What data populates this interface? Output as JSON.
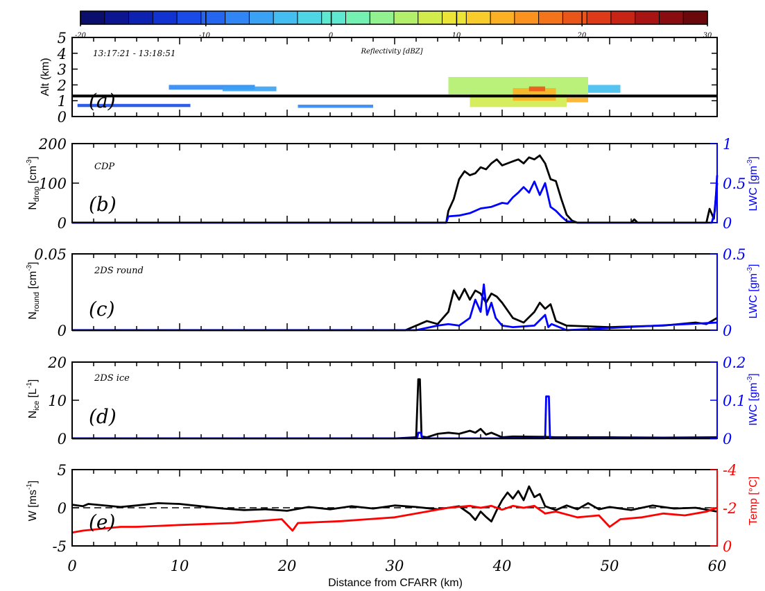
{
  "colorbar": {
    "ticks": [
      "-20",
      "-10",
      "0",
      "10",
      "20",
      "30"
    ],
    "colors": [
      "#0a0f6e",
      "#0c1690",
      "#0e22b2",
      "#1033d2",
      "#1a4ae8",
      "#2466f0",
      "#2f86f4",
      "#3aa2f4",
      "#44bef0",
      "#4fd6e6",
      "#5ee8d2",
      "#74f0b2",
      "#92f290",
      "#b2f06c",
      "#d2ec4c",
      "#ece436",
      "#f8cc2a",
      "#fcb024",
      "#fa9220",
      "#f4741c",
      "#ea561a",
      "#de3a18",
      "#c82416",
      "#a81414",
      "#880c10",
      "#6a080c"
    ]
  },
  "chart_data": [
    {
      "panel": "a",
      "type": "heatmap",
      "label": "(a)",
      "annotation": "13:17:21 - 13:18:51",
      "colorbar_title": "Reflectivity [dBZ]",
      "ylabel": "Alt (km)",
      "yticks": [
        "0",
        "1",
        "2",
        "3",
        "4",
        "5"
      ],
      "ylim": [
        0,
        5
      ],
      "xlim": [
        0,
        60
      ],
      "reference_altitude_km": 1.3,
      "cells": [
        {
          "x0": 0.5,
          "x1": 11,
          "y0": 0.6,
          "y1": 0.8,
          "dbz": -12
        },
        {
          "x0": 9,
          "x1": 17,
          "y0": 1.7,
          "y1": 2.0,
          "dbz": -8
        },
        {
          "x0": 14,
          "x1": 19,
          "y0": 1.6,
          "y1": 1.9,
          "dbz": -5
        },
        {
          "x0": 21,
          "x1": 28,
          "y0": 0.55,
          "y1": 0.75,
          "dbz": -8
        },
        {
          "x0": 35,
          "x1": 48,
          "y0": 1.4,
          "y1": 2.5,
          "dbz": 5
        },
        {
          "x0": 37,
          "x1": 46,
          "y0": 0.6,
          "y1": 1.4,
          "dbz": 8
        },
        {
          "x0": 41,
          "x1": 45,
          "y0": 1.0,
          "y1": 1.8,
          "dbz": 14
        },
        {
          "x0": 42.5,
          "x1": 44,
          "y0": 1.6,
          "y1": 1.9,
          "dbz": 20
        },
        {
          "x0": 46,
          "x1": 48,
          "y0": 0.9,
          "y1": 1.2,
          "dbz": 14
        },
        {
          "x0": 48,
          "x1": 51,
          "y0": 1.5,
          "y1": 2.0,
          "dbz": -3
        }
      ]
    },
    {
      "panel": "b",
      "type": "line",
      "label": "(b)",
      "instrument": "CDP",
      "ylabel_left": "N",
      "ylabel_left_sub": "drop",
      "ylabel_left_unit": " [cm",
      "ylabel_left_exp": "-3",
      "ylabel_left_tail": "]",
      "ylabel_right": "LWC [gm",
      "ylabel_right_exp": "-3",
      "ylabel_right_tail": "]",
      "ylim": [
        0,
        200
      ],
      "yticks": [
        "0",
        "100",
        "200"
      ],
      "y2lim": [
        0,
        1
      ],
      "y2ticks": [
        "0",
        "0.5",
        "1"
      ],
      "series": [
        {
          "axis": "left",
          "color": "#000000",
          "x": [
            0,
            34.8,
            35,
            35.5,
            36,
            36.5,
            37,
            37.5,
            38,
            38.5,
            39,
            39.5,
            40,
            40.5,
            41,
            41.5,
            42,
            42.5,
            43,
            43.5,
            44,
            44.5,
            45,
            45.5,
            46,
            46.5,
            47,
            50,
            52,
            52.3,
            52.6,
            55,
            59,
            59.3,
            59.7,
            60
          ],
          "y": [
            0,
            0,
            30,
            60,
            110,
            130,
            120,
            125,
            140,
            135,
            150,
            160,
            145,
            150,
            155,
            160,
            150,
            165,
            160,
            170,
            150,
            110,
            105,
            60,
            20,
            5,
            0,
            0,
            0,
            8,
            0,
            0,
            0,
            35,
            10,
            100
          ]
        },
        {
          "axis": "right",
          "color": "#0000ff",
          "x": [
            0,
            34.8,
            35,
            36,
            37,
            38,
            39,
            40,
            40.5,
            41,
            41.5,
            42,
            42.5,
            43,
            43.5,
            44,
            44.5,
            45,
            45.5,
            46,
            47,
            59.5,
            59.8,
            60
          ],
          "y": [
            0,
            0,
            0.08,
            0.09,
            0.12,
            0.18,
            0.2,
            0.25,
            0.24,
            0.32,
            0.38,
            0.45,
            0.38,
            0.52,
            0.35,
            0.5,
            0.2,
            0.15,
            0.08,
            0.02,
            0,
            0,
            0.15,
            0.6
          ]
        }
      ]
    },
    {
      "panel": "c",
      "type": "line",
      "label": "(c)",
      "instrument": "2DS round",
      "ylabel_left": "N",
      "ylabel_left_sub": "round",
      "ylabel_left_unit": " [cm",
      "ylabel_left_exp": "-3",
      "ylabel_left_tail": "]",
      "ylabel_right": "LWC [gm",
      "ylabel_right_exp": "-3",
      "ylabel_right_tail": "]",
      "ylim": [
        0,
        0.05
      ],
      "yticks": [
        "0",
        "0.05"
      ],
      "y2lim": [
        0,
        0.5
      ],
      "y2ticks": [
        "0",
        "0.5"
      ],
      "series": [
        {
          "axis": "left",
          "color": "#000000",
          "x": [
            0,
            31,
            32,
            33,
            34,
            35,
            35.5,
            36,
            36.5,
            37,
            37.5,
            38,
            38.5,
            39,
            39.5,
            40,
            41,
            42,
            43,
            43.5,
            44,
            44.5,
            45,
            46,
            50,
            55,
            58,
            59,
            60
          ],
          "y": [
            0,
            0,
            0.003,
            0.006,
            0.004,
            0.012,
            0.026,
            0.02,
            0.027,
            0.02,
            0.026,
            0.024,
            0.018,
            0.024,
            0.022,
            0.018,
            0.008,
            0.005,
            0.012,
            0.018,
            0.014,
            0.017,
            0.006,
            0.003,
            0.002,
            0.003,
            0.005,
            0.004,
            0.008
          ]
        },
        {
          "axis": "right",
          "color": "#0000ff",
          "x": [
            0,
            32,
            34,
            35,
            36,
            37,
            37.5,
            38,
            38.3,
            38.6,
            39,
            39.4,
            40,
            41,
            43,
            44,
            44.3,
            44.6,
            46,
            60
          ],
          "y": [
            0,
            0,
            0.03,
            0.04,
            0.03,
            0.08,
            0.2,
            0.12,
            0.3,
            0.1,
            0.18,
            0.08,
            0.03,
            0.02,
            0.03,
            0.1,
            0.02,
            0.04,
            0,
            0.05
          ]
        }
      ]
    },
    {
      "panel": "d",
      "type": "line",
      "label": "(d)",
      "instrument": "2DS ice",
      "ylabel_left": "N",
      "ylabel_left_sub": "ice",
      "ylabel_left_unit": " [L",
      "ylabel_left_exp": "-1",
      "ylabel_left_tail": "]",
      "ylabel_right": "IWC [gm",
      "ylabel_right_exp": "-3",
      "ylabel_right_tail": "]",
      "ylim": [
        0,
        20
      ],
      "yticks": [
        "0",
        "10",
        "20"
      ],
      "y2lim": [
        0,
        0.2
      ],
      "y2ticks": [
        "0",
        "0.1",
        "0.2"
      ],
      "series": [
        {
          "axis": "left",
          "color": "#000000",
          "x": [
            0,
            30,
            32,
            32.2,
            32.35,
            32.5,
            33,
            34,
            35,
            36,
            37,
            37.5,
            38,
            38.5,
            39,
            40,
            41,
            44,
            45,
            50,
            55,
            60
          ],
          "y": [
            0,
            0,
            0.3,
            15.5,
            15.5,
            0.5,
            0.3,
            1.2,
            1.5,
            1.2,
            2.0,
            1.5,
            2.5,
            1.0,
            1.5,
            0.3,
            0.5,
            0.4,
            0.3,
            0.3,
            0.2,
            0.3
          ]
        },
        {
          "axis": "right",
          "color": "#0000ff",
          "x": [
            0,
            32.1,
            32.2,
            32.45,
            32.55,
            44.0,
            44.1,
            44.35,
            44.45,
            60
          ],
          "y": [
            0,
            0,
            0.015,
            0.015,
            0,
            0,
            0.11,
            0.11,
            0,
            0
          ]
        }
      ]
    },
    {
      "panel": "e",
      "type": "line",
      "label": "(e)",
      "ylabel_left": "W [ms",
      "ylabel_left_exp": "-1",
      "ylabel_left_tail": "]",
      "ylabel_right": "Temp [°C]",
      "ylim": [
        -5,
        5
      ],
      "yticks": [
        "-5",
        "0",
        "5"
      ],
      "y2lim": [
        0,
        -4
      ],
      "y2ticks": [
        "0",
        "-2",
        "-4"
      ],
      "zero_line": true,
      "series": [
        {
          "axis": "left",
          "color": "#000000",
          "x": [
            0,
            1,
            1.5,
            4.5,
            6,
            8,
            10,
            12,
            14,
            16,
            18,
            20,
            22,
            24,
            26,
            28,
            30,
            32,
            34,
            36,
            37,
            37.5,
            38,
            38.5,
            39,
            39.5,
            40,
            40.5,
            41,
            41.5,
            42,
            42.5,
            43,
            43.5,
            44,
            45,
            46,
            47,
            48,
            49,
            50,
            52,
            54,
            56,
            58,
            60
          ],
          "y": [
            0.4,
            0.2,
            0.5,
            0.1,
            0.3,
            0.6,
            0.5,
            0.2,
            -0.1,
            -0.3,
            -0.2,
            -0.4,
            0.1,
            -0.2,
            0.2,
            -0.1,
            0.3,
            0.1,
            -0.2,
            0.2,
            -0.8,
            -1.6,
            -0.5,
            -1.2,
            -1.8,
            -0.3,
            1.0,
            2.0,
            1.2,
            2.2,
            1.0,
            2.8,
            1.4,
            1.8,
            0.2,
            -0.3,
            0.3,
            -0.2,
            0.6,
            -0.2,
            0.1,
            -0.3,
            0.3,
            -0.1,
            0.0,
            -0.5
          ]
        },
        {
          "axis": "right",
          "color": "#ff0000",
          "x": [
            0,
            1,
            4.5,
            6,
            10,
            15,
            19.5,
            20.5,
            21,
            25,
            30,
            33,
            35,
            37,
            38,
            39,
            40,
            41,
            42,
            43,
            44,
            45,
            47,
            49,
            50,
            51,
            53,
            55,
            57,
            59,
            60
          ],
          "y": [
            -0.7,
            -0.8,
            -1.0,
            -1.0,
            -1.1,
            -1.2,
            -1.4,
            -0.8,
            -1.2,
            -1.3,
            -1.5,
            -1.8,
            -2.0,
            -2.1,
            -2.0,
            -2.1,
            -1.9,
            -2.1,
            -2.0,
            -2.1,
            -1.7,
            -1.8,
            -1.5,
            -1.6,
            -1.0,
            -1.4,
            -1.5,
            -1.7,
            -1.6,
            -1.8,
            -2.0
          ]
        }
      ]
    }
  ],
  "xaxis": {
    "label": "Distance from CFARR (km)",
    "ticks": [
      "0",
      "10",
      "20",
      "30",
      "40",
      "50",
      "60"
    ],
    "xlim": [
      0,
      60
    ]
  }
}
